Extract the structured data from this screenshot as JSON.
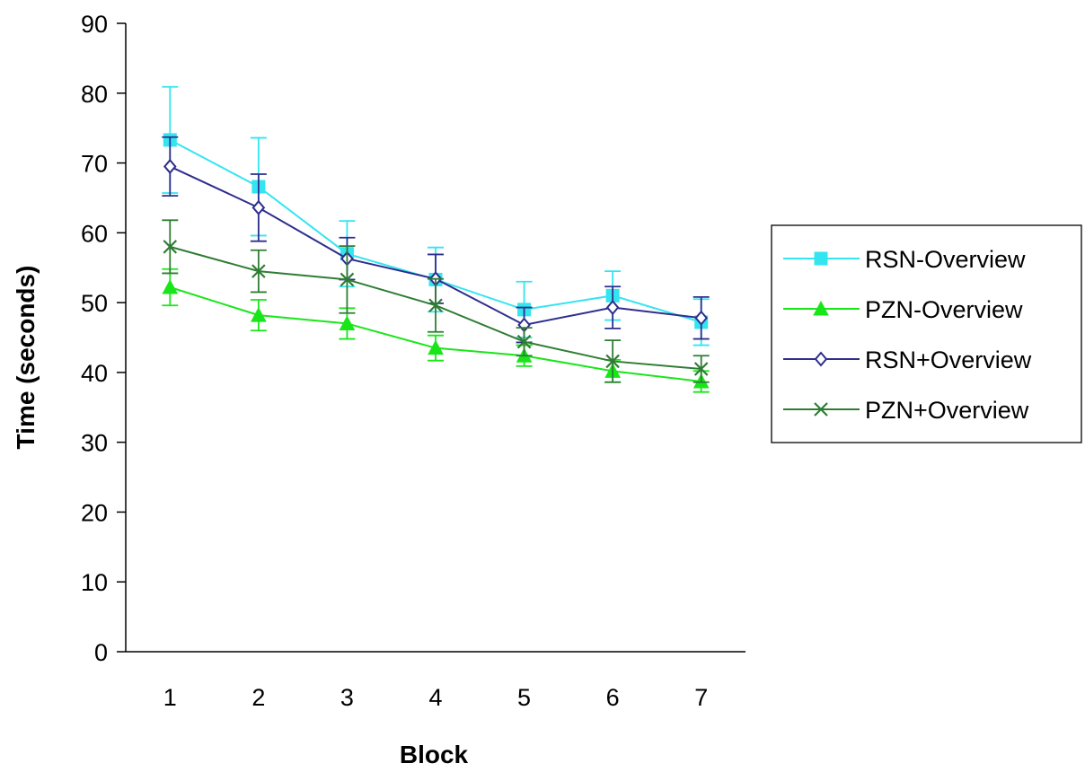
{
  "chart_data": {
    "type": "line",
    "xlabel": "Block",
    "ylabel": "Time (seconds)",
    "ylim": [
      0,
      90
    ],
    "yticks": [
      0,
      10,
      20,
      30,
      40,
      50,
      60,
      70,
      80,
      90
    ],
    "categories": [
      "1",
      "2",
      "3",
      "4",
      "5",
      "6",
      "7"
    ],
    "error_bars": true,
    "grid": false,
    "legend_position": "right",
    "series": [
      {
        "name": "RSN-Overview",
        "marker": "filled-square",
        "color": "#33E5F0",
        "values": [
          73.3,
          66.6,
          57.0,
          53.3,
          49.0,
          51.0,
          47.2
        ],
        "errors": [
          7.6,
          7.0,
          4.7,
          4.6,
          4.0,
          3.5,
          3.3
        ]
      },
      {
        "name": "PZN-Overview",
        "marker": "filled-triangle",
        "color": "#19E619",
        "values": [
          52.2,
          48.2,
          47.0,
          43.5,
          42.4,
          40.2,
          38.7
        ],
        "errors": [
          2.6,
          2.2,
          2.2,
          1.8,
          1.5,
          1.6,
          1.5
        ]
      },
      {
        "name": "RSN+Overview",
        "marker": "open-diamond",
        "color": "#2E2E8C",
        "values": [
          69.5,
          63.6,
          56.3,
          53.4,
          46.8,
          49.3,
          47.8
        ],
        "errors": [
          4.2,
          4.8,
          3.0,
          3.5,
          2.5,
          3.0,
          3.0
        ]
      },
      {
        "name": "PZN+Overview",
        "marker": "x",
        "color": "#2F7D34",
        "values": [
          58.0,
          54.5,
          53.3,
          49.6,
          44.4,
          41.6,
          40.5
        ],
        "errors": [
          3.8,
          3.0,
          4.8,
          3.8,
          2.0,
          3.0,
          1.9
        ]
      }
    ]
  }
}
